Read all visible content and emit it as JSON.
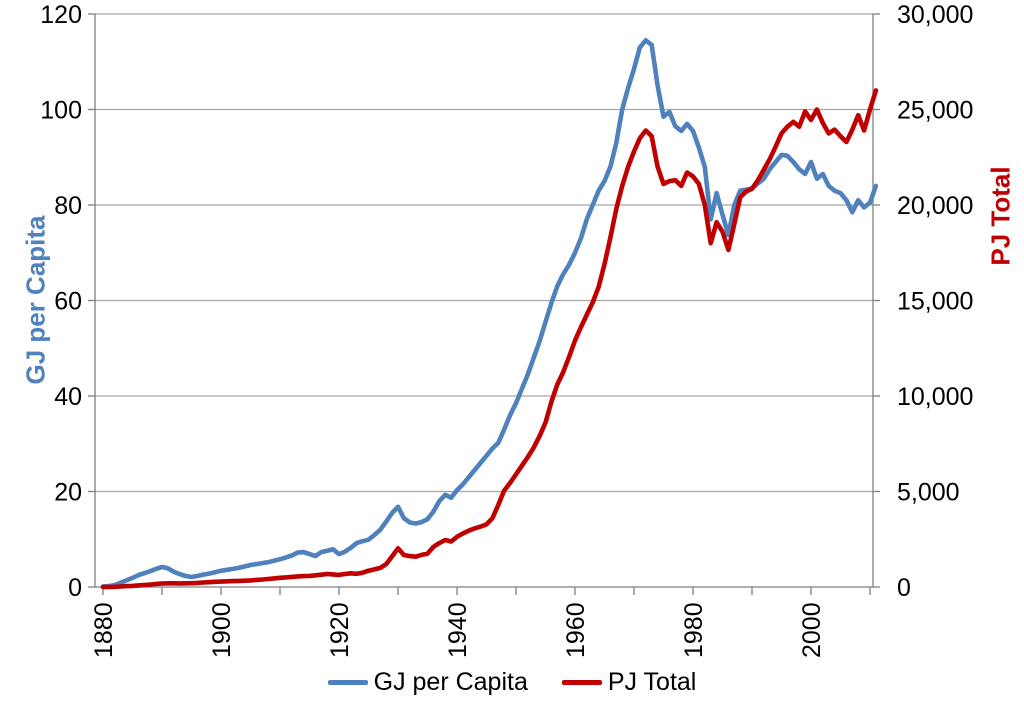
{
  "chart_data": {
    "type": "line",
    "title": "",
    "grid": "horizontal",
    "legend_position": "bottom",
    "x_axis": {
      "labeled_ticks": [
        1880,
        1900,
        1920,
        1940,
        1960,
        1980,
        2000
      ],
      "minor_tick_step_years": 10,
      "first_year": 1880,
      "last_tick_year": 2010
    },
    "y_left": {
      "label": "GJ per Capita",
      "range": [
        0,
        120
      ],
      "ticks": [
        0,
        20,
        40,
        60,
        80,
        100,
        120
      ],
      "tick_labels": [
        "0",
        "20",
        "40",
        "60",
        "80",
        "100",
        "120"
      ],
      "color": "#4F81BD"
    },
    "y_right": {
      "label": "PJ Total",
      "range": [
        0,
        30000
      ],
      "ticks": [
        0,
        5000,
        10000,
        15000,
        20000,
        25000,
        30000
      ],
      "tick_labels": [
        "0",
        "5,000",
        "10,000",
        "15,000",
        "20,000",
        "25,000",
        "30,000"
      ],
      "color": "#C00000"
    },
    "years": [
      1880,
      1881,
      1882,
      1883,
      1884,
      1885,
      1886,
      1887,
      1888,
      1889,
      1890,
      1891,
      1892,
      1893,
      1894,
      1895,
      1896,
      1897,
      1898,
      1899,
      1900,
      1901,
      1902,
      1903,
      1904,
      1905,
      1906,
      1907,
      1908,
      1909,
      1910,
      1911,
      1912,
      1913,
      1914,
      1915,
      1916,
      1917,
      1918,
      1919,
      1920,
      1921,
      1922,
      1923,
      1924,
      1925,
      1926,
      1927,
      1928,
      1929,
      1930,
      1931,
      1932,
      1933,
      1934,
      1935,
      1936,
      1937,
      1938,
      1939,
      1940,
      1941,
      1942,
      1943,
      1944,
      1945,
      1946,
      1947,
      1948,
      1949,
      1950,
      1951,
      1952,
      1953,
      1954,
      1955,
      1956,
      1957,
      1958,
      1959,
      1960,
      1961,
      1962,
      1963,
      1964,
      1965,
      1966,
      1967,
      1968,
      1969,
      1970,
      1971,
      1972,
      1973,
      1974,
      1975,
      1976,
      1977,
      1978,
      1979,
      1980,
      1981,
      1982,
      1983,
      1984,
      1985,
      1986,
      1987,
      1988,
      1989,
      1990,
      1991,
      1992,
      1993,
      1994,
      1995,
      1996,
      1997,
      1998,
      1999,
      2000,
      2001,
      2002,
      2003,
      2004,
      2005,
      2006,
      2007,
      2008,
      2009,
      2010,
      2011
    ],
    "series": [
      {
        "name": "GJ per Capita",
        "axis": "left",
        "color": "#4F81BD",
        "values": [
          0.1,
          0.2,
          0.4,
          0.9,
          1.4,
          1.9,
          2.5,
          2.9,
          3.3,
          3.8,
          4.2,
          3.9,
          3.2,
          2.7,
          2.3,
          2.1,
          2.3,
          2.6,
          2.8,
          3.1,
          3.4,
          3.6,
          3.8,
          4.0,
          4.3,
          4.6,
          4.8,
          5.0,
          5.2,
          5.5,
          5.8,
          6.2,
          6.6,
          7.2,
          7.3,
          6.9,
          6.5,
          7.3,
          7.6,
          7.9,
          6.9,
          7.4,
          8.2,
          9.2,
          9.6,
          9.9,
          10.9,
          12.0,
          13.7,
          15.5,
          16.8,
          14.4,
          13.5,
          13.3,
          13.6,
          14.2,
          15.8,
          18.0,
          19.3,
          18.7,
          20.3,
          21.5,
          23.0,
          24.5,
          26.0,
          27.5,
          29.0,
          30.2,
          33.0,
          36.0,
          38.5,
          41.5,
          44.5,
          48.0,
          51.5,
          55.5,
          59.5,
          63.0,
          65.5,
          67.5,
          70.0,
          73.0,
          77.0,
          80.0,
          83.0,
          85.0,
          88.0,
          93.0,
          100.0,
          104.5,
          108.5,
          113.0,
          114.5,
          113.5,
          105.0,
          98.5,
          99.5,
          96.5,
          95.5,
          97.0,
          95.5,
          92.0,
          88.0,
          77.0,
          82.5,
          78.0,
          73.7,
          80.0,
          83.0,
          83.2,
          83.5,
          84.5,
          85.5,
          87.5,
          89.0,
          90.5,
          90.3,
          89.0,
          87.5,
          86.5,
          89.0,
          85.5,
          86.5,
          84.0,
          83.0,
          82.5,
          81.0,
          78.5,
          81.0,
          79.5,
          80.5,
          84.0
        ]
      },
      {
        "name": "PJ Total",
        "axis": "right",
        "color": "#C00000",
        "values": [
          0,
          5,
          10,
          25,
          45,
          60,
          85,
          105,
          125,
          160,
          185,
          195,
          195,
          190,
          195,
          200,
          215,
          235,
          250,
          270,
          285,
          300,
          310,
          320,
          330,
          345,
          370,
          395,
          420,
          450,
          480,
          505,
          530,
          555,
          570,
          580,
          610,
          645,
          680,
          660,
          635,
          680,
          715,
          690,
          750,
          855,
          920,
          1000,
          1200,
          1600,
          2025,
          1675,
          1620,
          1585,
          1680,
          1750,
          2100,
          2300,
          2460,
          2380,
          2630,
          2800,
          2950,
          3070,
          3160,
          3280,
          3600,
          4300,
          5050,
          5450,
          5900,
          6350,
          6800,
          7300,
          7900,
          8600,
          9700,
          10600,
          11250,
          12050,
          12900,
          13600,
          14250,
          14900,
          15700,
          16900,
          18300,
          19800,
          21000,
          22000,
          22800,
          23500,
          23900,
          23600,
          22000,
          21100,
          21250,
          21300,
          21000,
          21700,
          21500,
          21100,
          20000,
          18000,
          19100,
          18600,
          17650,
          19000,
          20400,
          20700,
          20850,
          21300,
          21850,
          22400,
          23050,
          23750,
          24100,
          24350,
          24100,
          24900,
          24450,
          25000,
          24300,
          23750,
          23950,
          23600,
          23300,
          23950,
          24700,
          23900,
          25000,
          26000
        ]
      }
    ],
    "legend": [
      "GJ per Capita",
      "PJ Total"
    ],
    "style_colors": {
      "gridline": "#A6A6A6",
      "axis": "#808080",
      "tick_text": "#000000"
    }
  }
}
